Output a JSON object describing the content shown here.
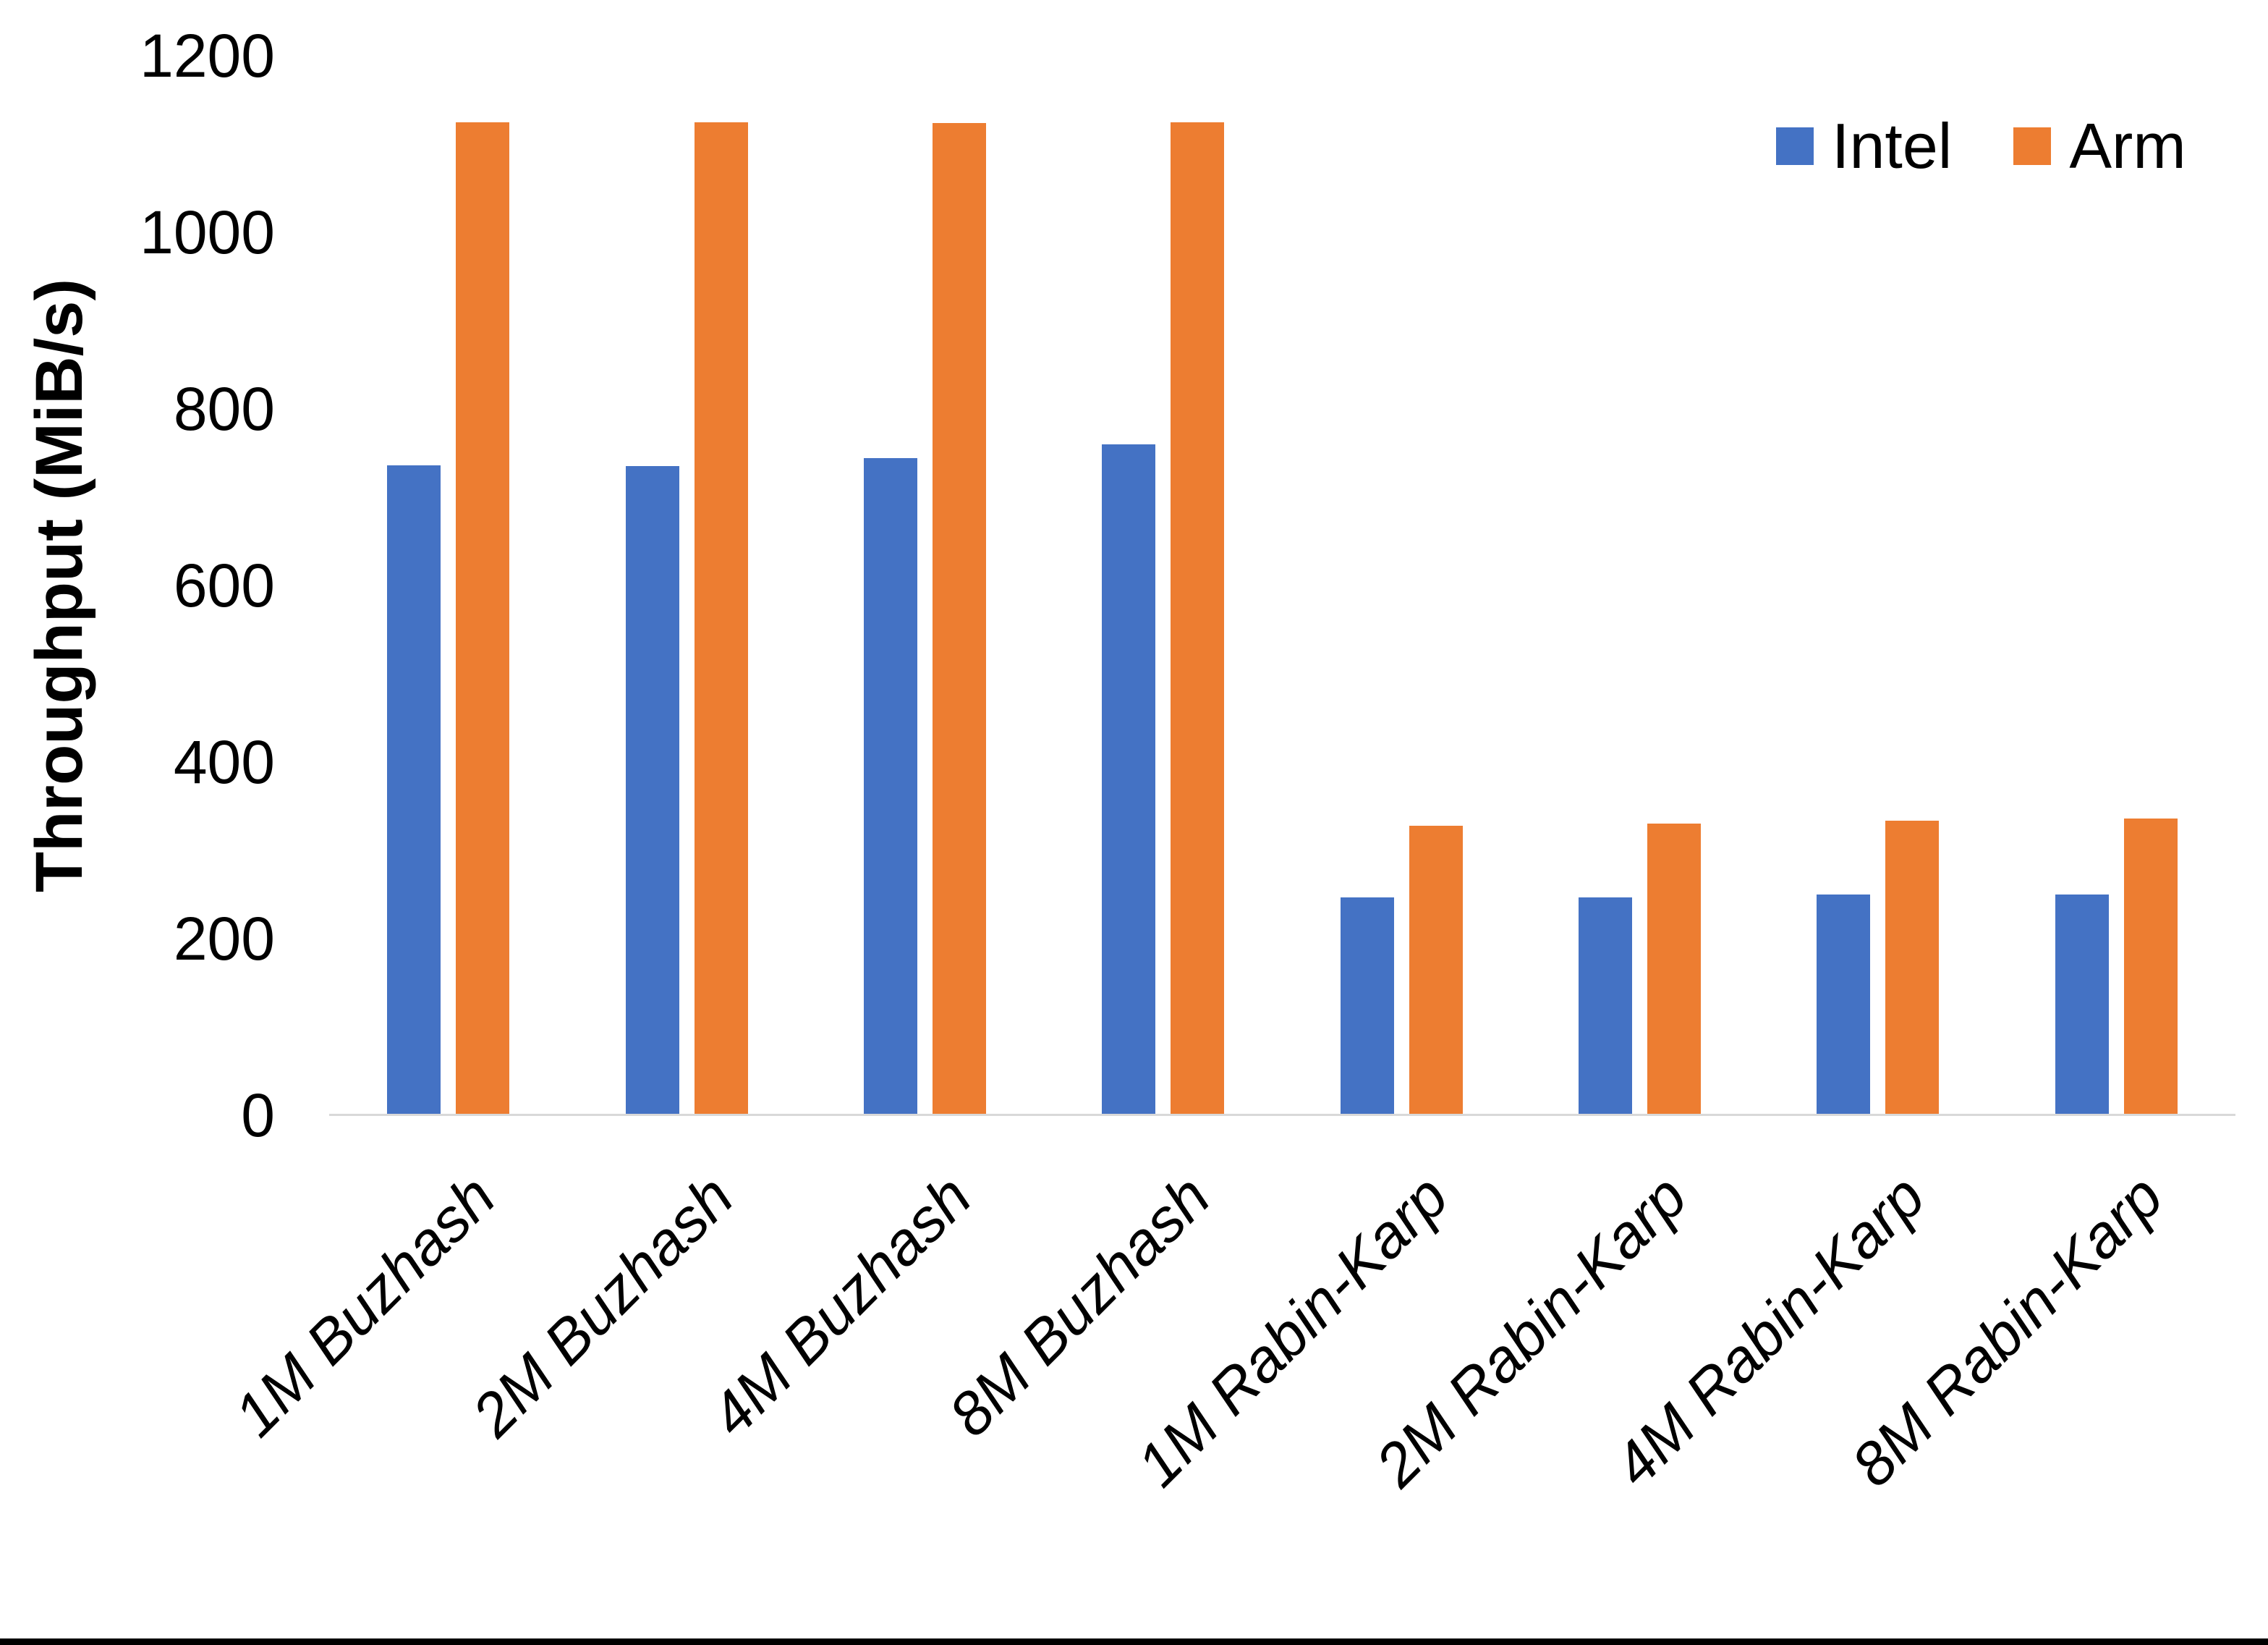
{
  "chart_data": {
    "type": "bar",
    "categories": [
      "1M Buzhash",
      "2M Buzhash",
      "4M Buzhash",
      "8M Buzhash",
      "1M Rabin-Karp",
      "2M Rabin-Karp",
      "4M Rabin-Karp",
      "8M Rabin-Karp"
    ],
    "series": [
      {
        "name": "Intel",
        "color": "#4472C4",
        "values": [
          736,
          735,
          744,
          760,
          247,
          247,
          250,
          250
        ]
      },
      {
        "name": "Arm",
        "color": "#ED7D31",
        "values": [
          1125,
          1125,
          1124,
          1125,
          328,
          330,
          334,
          336
        ]
      }
    ],
    "title": "",
    "xlabel": "",
    "ylabel": "Throughput (MiB/s)",
    "ylim": [
      0,
      1200
    ],
    "yticks": [
      0,
      200,
      400,
      600,
      800,
      1000,
      1200
    ],
    "grid": false,
    "legend_position": "top-right"
  },
  "colors": {
    "intel": "#4472C4",
    "arm": "#ED7D31",
    "baseline": "#D9D9D9",
    "bottom_border": "#000000",
    "text": "#000000"
  }
}
